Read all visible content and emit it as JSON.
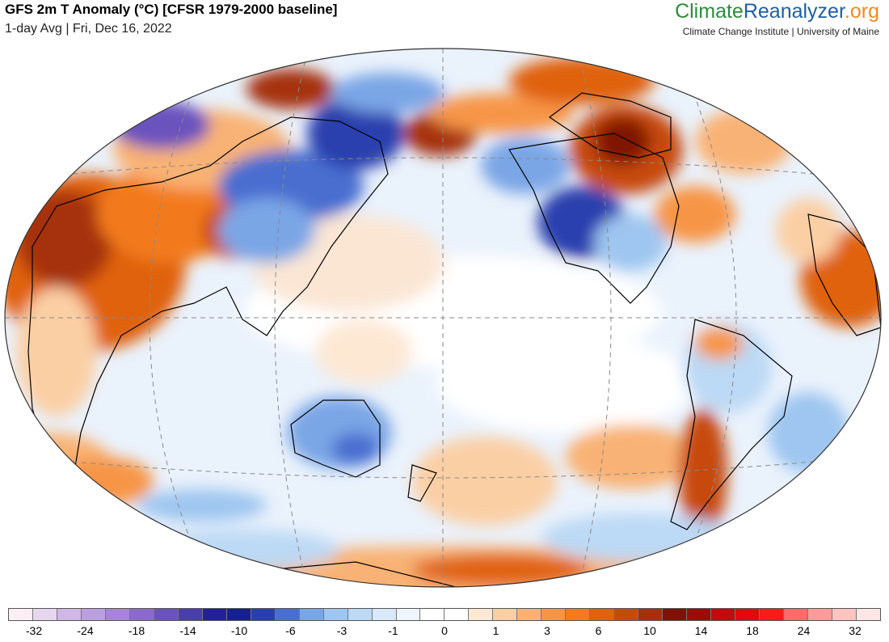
{
  "header": {
    "title": "GFS 2m T Anomaly (°C) [CFSR 1979-2000 baseline]",
    "subtitle": "1-day Avg | Fri, Dec 16, 2022"
  },
  "logo": {
    "part1": "Climate",
    "part2": "Reanalyzer",
    "part3": ".org",
    "tagline": "Climate Change Institute | University of Maine"
  },
  "legend": {
    "colors": [
      "#fbeef4",
      "#e7d6ef",
      "#d0b7e6",
      "#bba0e0",
      "#a784d9",
      "#8b6acd",
      "#6a52bd",
      "#4a3ead",
      "#22219a",
      "#15218f",
      "#2a3fae",
      "#4a6ed0",
      "#7aa6e6",
      "#9ec6f0",
      "#bcd9f5",
      "#d8e9fa",
      "#eef5fd",
      "#ffffff",
      "#ffffff",
      "#fde8d4",
      "#fbcfa4",
      "#f9b275",
      "#f79546",
      "#f37a1f",
      "#e0620e",
      "#c74a0a",
      "#a6300a",
      "#7f1206",
      "#9e0b0b",
      "#c40a0a",
      "#e20a0a",
      "#ff1a1a",
      "#ff6a6a",
      "#ff9a9a",
      "#ffc4c0",
      "#ffe6e6"
    ],
    "ticks": [
      "-32",
      "-24",
      "-18",
      "-14",
      "-10",
      "-6",
      "-3",
      "-1",
      "0",
      "1",
      "3",
      "6",
      "10",
      "14",
      "18",
      "24",
      "32"
    ]
  }
}
